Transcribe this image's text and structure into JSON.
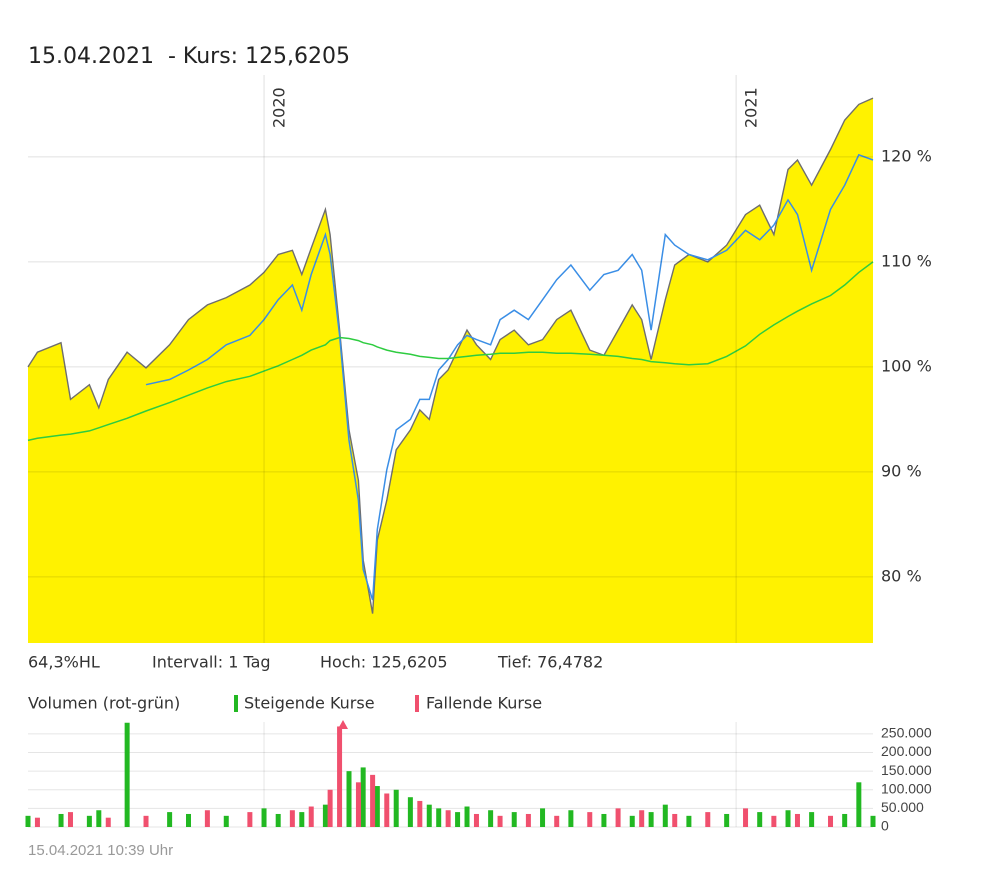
{
  "header": {
    "title": "15.04.2021  - Kurs: 125,6205"
  },
  "chart_data": [
    {
      "type": "area",
      "x": [
        2019.5,
        2019.52,
        2019.57,
        2019.59,
        2019.63,
        2019.65,
        2019.67,
        2019.71,
        2019.75,
        2019.8,
        2019.84,
        2019.88,
        2019.92,
        2019.97,
        2020.0,
        2020.03,
        2020.06,
        2020.08,
        2020.1,
        2020.13,
        2020.14,
        2020.16,
        2020.18,
        2020.2,
        2020.21,
        2020.23,
        2020.24,
        2020.26,
        2020.28,
        2020.31,
        2020.33,
        2020.35,
        2020.37,
        2020.39,
        2020.41,
        2020.43,
        2020.45,
        2020.48,
        2020.5,
        2020.53,
        2020.56,
        2020.59,
        2020.62,
        2020.65,
        2020.69,
        2020.72,
        2020.75,
        2020.78,
        2020.8,
        2020.82,
        2020.85,
        2020.87,
        2020.9,
        2020.94,
        2020.98,
        2021.02,
        2021.05,
        2021.08,
        2021.11,
        2021.13,
        2021.16,
        2021.2,
        2021.23,
        2021.26,
        2021.29
      ],
      "xlim": [
        2019.5,
        2021.29
      ],
      "xticks": [
        2020,
        2021
      ],
      "ylim": [
        73.7,
        127.8
      ],
      "yticks": [
        {
          "value": 80,
          "label": "80 %"
        },
        {
          "value": 90,
          "label": "90 %"
        },
        {
          "value": 100,
          "label": "100 %"
        },
        {
          "value": 110,
          "label": "110 %"
        },
        {
          "value": 120,
          "label": "120 %"
        }
      ],
      "grid": true,
      "series": [
        {
          "type": "area",
          "color": "#fff200",
          "stroke": "#6e6e6e",
          "values": [
            100.0,
            101.4,
            102.3,
            96.9,
            98.3,
            96.1,
            98.8,
            101.4,
            99.9,
            102.1,
            104.5,
            105.9,
            106.6,
            107.8,
            109.0,
            110.7,
            111.1,
            108.8,
            111.3,
            115.0,
            112.6,
            103.5,
            94.0,
            89.2,
            81.6,
            76.5,
            83.5,
            87.3,
            92.1,
            94.0,
            95.9,
            95.0,
            98.8,
            99.7,
            101.6,
            103.5,
            102.1,
            100.7,
            102.6,
            103.5,
            102.1,
            102.6,
            104.5,
            105.4,
            101.6,
            101.1,
            103.5,
            105.9,
            104.5,
            100.7,
            106.4,
            109.7,
            110.7,
            110.0,
            111.6,
            114.5,
            115.4,
            112.6,
            118.8,
            119.7,
            117.3,
            120.7,
            123.5,
            125.0,
            125.6
          ]
        },
        {
          "type": "line",
          "color": "#3a8ee6",
          "values": [
            null,
            null,
            null,
            null,
            null,
            null,
            null,
            null,
            98.3,
            98.8,
            99.7,
            100.7,
            102.1,
            103.0,
            104.5,
            106.4,
            107.8,
            105.4,
            108.8,
            112.6,
            110.7,
            103.0,
            93.0,
            87.3,
            80.7,
            77.8,
            84.5,
            90.2,
            94.0,
            95.0,
            96.9,
            96.9,
            99.7,
            100.7,
            102.1,
            103.0,
            102.6,
            102.1,
            104.5,
            105.4,
            104.5,
            106.4,
            108.3,
            109.7,
            107.3,
            108.8,
            109.2,
            110.7,
            109.2,
            103.5,
            112.6,
            111.6,
            110.7,
            110.2,
            111.1,
            113.0,
            112.1,
            113.5,
            115.9,
            114.5,
            109.2,
            115.0,
            117.3,
            120.2,
            119.7
          ]
        },
        {
          "type": "line",
          "color": "#2ecc40",
          "values": [
            93.0,
            93.2,
            93.5,
            93.6,
            93.9,
            94.2,
            94.5,
            95.1,
            95.8,
            96.6,
            97.3,
            98.0,
            98.6,
            99.1,
            99.6,
            100.1,
            100.7,
            101.1,
            101.6,
            102.1,
            102.5,
            102.8,
            102.7,
            102.5,
            102.3,
            102.1,
            101.9,
            101.6,
            101.4,
            101.2,
            101.0,
            100.9,
            100.8,
            100.8,
            100.9,
            101.0,
            101.1,
            101.2,
            101.3,
            101.3,
            101.4,
            101.4,
            101.3,
            101.3,
            101.2,
            101.1,
            101.0,
            100.8,
            100.7,
            100.5,
            100.4,
            100.3,
            100.2,
            100.3,
            101.0,
            102.0,
            103.1,
            104.0,
            104.8,
            105.3,
            106.0,
            106.8,
            107.8,
            109.0,
            110.0
          ]
        }
      ],
      "annotations": [
        "64,3%HL",
        "Intervall: 1 Tag",
        "Hoch: 125,6205",
        "Tief: 76,4782"
      ]
    },
    {
      "type": "bar",
      "title": "Volumen (rot-grün)",
      "x": [
        2019.5,
        2019.52,
        2019.57,
        2019.59,
        2019.63,
        2019.65,
        2019.67,
        2019.71,
        2019.75,
        2019.8,
        2019.84,
        2019.88,
        2019.92,
        2019.97,
        2020.0,
        2020.03,
        2020.06,
        2020.08,
        2020.1,
        2020.13,
        2020.14,
        2020.16,
        2020.18,
        2020.2,
        2020.21,
        2020.23,
        2020.24,
        2020.26,
        2020.28,
        2020.31,
        2020.33,
        2020.35,
        2020.37,
        2020.39,
        2020.41,
        2020.43,
        2020.45,
        2020.48,
        2020.5,
        2020.53,
        2020.56,
        2020.59,
        2020.62,
        2020.65,
        2020.69,
        2020.72,
        2020.75,
        2020.78,
        2020.8,
        2020.82,
        2020.85,
        2020.87,
        2020.9,
        2020.94,
        2020.98,
        2021.02,
        2021.05,
        2021.08,
        2021.11,
        2021.13,
        2021.16,
        2021.2,
        2021.23,
        2021.26,
        2021.29
      ],
      "xlim": [
        2019.5,
        2021.29
      ],
      "xticks": [
        2020,
        2021
      ],
      "ylim": [
        0,
        282000
      ],
      "yticks": [
        0,
        {
          "value": 50000,
          "label": "50.000"
        },
        {
          "value": 100000,
          "label": "100.000"
        },
        {
          "value": 150000,
          "label": "150.000"
        },
        {
          "value": 200000,
          "label": "200.000"
        },
        {
          "value": 250000,
          "label": "250.000"
        }
      ],
      "grid": true,
      "series": [
        {
          "name": "Steigende Kurse",
          "color": "#22b822",
          "values": [
            30000,
            null,
            35000,
            null,
            30000,
            45000,
            null,
            280000,
            null,
            40000,
            35000,
            null,
            30000,
            null,
            50000,
            35000,
            null,
            40000,
            null,
            60000,
            null,
            null,
            150000,
            null,
            160000,
            null,
            110000,
            null,
            100000,
            80000,
            null,
            60000,
            50000,
            null,
            40000,
            55000,
            null,
            45000,
            null,
            40000,
            null,
            50000,
            null,
            45000,
            null,
            35000,
            null,
            30000,
            null,
            40000,
            60000,
            null,
            30000,
            null,
            35000,
            null,
            40000,
            null,
            45000,
            null,
            40000,
            null,
            35000,
            120000,
            30000
          ]
        },
        {
          "name": "Fallende Kurse",
          "color": "#f0506e",
          "values": [
            null,
            25000,
            null,
            40000,
            null,
            null,
            25000,
            null,
            30000,
            null,
            null,
            45000,
            null,
            40000,
            null,
            null,
            45000,
            null,
            55000,
            null,
            100000,
            270000,
            null,
            120000,
            null,
            140000,
            null,
            90000,
            null,
            null,
            70000,
            null,
            null,
            45000,
            null,
            null,
            35000,
            null,
            30000,
            null,
            35000,
            null,
            30000,
            null,
            40000,
            null,
            50000,
            null,
            45000,
            null,
            null,
            35000,
            null,
            40000,
            null,
            50000,
            null,
            30000,
            null,
            35000,
            null,
            30000,
            null,
            null,
            null
          ]
        }
      ]
    }
  ],
  "footer": "15.04.2021 10:39 Uhr"
}
